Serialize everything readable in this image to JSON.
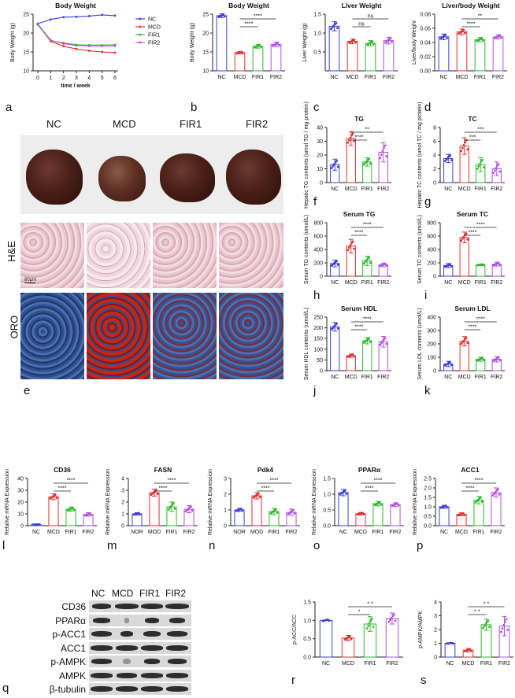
{
  "letters": {
    "a": "a",
    "b": "b",
    "c": "c",
    "d": "d",
    "e": "e",
    "f": "f",
    "g": "g",
    "h": "h",
    "i": "i",
    "j": "j",
    "k": "k",
    "l": "l",
    "m": "m",
    "n": "n",
    "o": "o",
    "p": "p",
    "q": "q",
    "r": "r",
    "s": "s"
  },
  "colors": {
    "NC": "#3d3dd9",
    "MCD": "#e03030",
    "FIR1": "#2eb82e",
    "FIR2": "#b04fe0"
  },
  "liver_photos": {
    "headers": [
      "NC",
      "MCD",
      "FIR1",
      "FIR2"
    ],
    "row_labels": [
      "H&E",
      "ORO"
    ],
    "scale_text": "80μm"
  },
  "western": {
    "lanes": [
      "NC",
      "MCD",
      "FIR1",
      "FIR2"
    ],
    "proteins": [
      "CD36",
      "PPARα",
      "p-ACC1",
      "ACC1",
      "p-AMPK",
      "AMPK",
      "β-tubulin"
    ]
  },
  "chart_data": [
    {
      "id": "a",
      "type": "line",
      "title": "Body Weight",
      "xlabel": "time / week",
      "ylabel": "Body Weight (g)",
      "x": [
        0,
        1,
        2,
        3,
        4,
        5,
        6
      ],
      "xticks": [
        "0",
        "1",
        "2",
        "3",
        "4",
        "5",
        "6"
      ],
      "ylim": [
        10,
        25
      ],
      "yticks": [
        10,
        15,
        20,
        25
      ],
      "legend": "right",
      "series": [
        {
          "name": "NC",
          "values": [
            22.5,
            23.6,
            24.2,
            24.3,
            24.5,
            24.8,
            24.6
          ]
        },
        {
          "name": "MCD",
          "values": [
            22.3,
            17.8,
            16.5,
            15.8,
            15.3,
            15.0,
            14.8
          ]
        },
        {
          "name": "FIR1",
          "values": [
            22.2,
            18.0,
            17.4,
            16.9,
            16.8,
            16.8,
            16.9
          ]
        },
        {
          "name": "FIR2",
          "values": [
            22.4,
            18.1,
            17.2,
            16.7,
            16.6,
            16.6,
            16.6
          ]
        }
      ]
    },
    {
      "id": "b",
      "type": "bar",
      "title": "Body Weight",
      "ylabel": "Body Weight (g)",
      "categories": [
        "NC",
        "MCD",
        "FIR1",
        "FIR2"
      ],
      "values": [
        24.6,
        14.8,
        16.5,
        17.0
      ],
      "errors": [
        0.5,
        0.3,
        0.5,
        0.6
      ],
      "ylim": [
        10,
        25
      ],
      "yticks": [
        10,
        15,
        20,
        25
      ],
      "sig": [
        {
          "from": 1,
          "to": 3,
          "label": "****"
        },
        {
          "from": 1,
          "to": 2,
          "label": "****"
        }
      ]
    },
    {
      "id": "c",
      "type": "bar",
      "title": "Liver Weight",
      "ylabel": "Liver Weight (g)",
      "categories": [
        "NC",
        "MCD",
        "FIR1",
        "FIR2"
      ],
      "values": [
        1.18,
        0.78,
        0.73,
        0.8
      ],
      "errors": [
        0.12,
        0.06,
        0.07,
        0.09
      ],
      "ylim": [
        0,
        1.5
      ],
      "yticks": [
        0.5,
        1.0,
        1.5
      ],
      "ytick_labels": [
        "0.5",
        "1.0",
        "1.5"
      ],
      "sig": [
        {
          "from": 1,
          "to": 3,
          "label": "ns"
        },
        {
          "from": 1,
          "to": 2,
          "label": "ns"
        }
      ]
    },
    {
      "id": "d",
      "type": "bar",
      "title": "Liver/body Weight",
      "ylabel": "Liver/body Weight",
      "categories": [
        "NC",
        "MCD",
        "FIR1",
        "FIR2"
      ],
      "values": [
        0.048,
        0.055,
        0.044,
        0.048
      ],
      "errors": [
        0.004,
        0.004,
        0.003,
        0.003
      ],
      "ylim": [
        0,
        0.08
      ],
      "yticks": [
        0,
        0.02,
        0.04,
        0.06,
        0.08
      ],
      "ytick_labels": [
        "0.00",
        "0.02",
        "0.04",
        "0.06",
        "0.08"
      ],
      "sig": [
        {
          "from": 1,
          "to": 3,
          "label": "**"
        },
        {
          "from": 1,
          "to": 2,
          "label": "****"
        }
      ]
    },
    {
      "id": "f",
      "type": "bar",
      "title": "TG",
      "ylabel": "Hepatic TG contents (umol TG / mg protein)",
      "categories": [
        "NC",
        "MCD",
        "FIR1",
        "FIR2"
      ],
      "values": [
        13,
        32,
        15,
        22
      ],
      "errors": [
        4,
        5,
        3,
        7
      ],
      "ylim": [
        0,
        40
      ],
      "yticks": [
        0,
        10,
        20,
        30,
        40
      ],
      "sig": [
        {
          "from": 1,
          "to": 3,
          "label": "**"
        },
        {
          "from": 1,
          "to": 2,
          "label": "****"
        }
      ]
    },
    {
      "id": "g",
      "type": "bar",
      "title": "TC",
      "ylabel": "Hepatic TC contents (umol TC / mg protein)",
      "categories": [
        "NC",
        "MCD",
        "FIR1",
        "FIR2"
      ],
      "values": [
        3.5,
        5.3,
        2.6,
        2.0
      ],
      "errors": [
        0.6,
        1.2,
        1.0,
        1.0
      ],
      "ylim": [
        0,
        8
      ],
      "yticks": [
        0,
        2,
        4,
        6,
        8
      ],
      "sig": [
        {
          "from": 1,
          "to": 3,
          "label": "***"
        },
        {
          "from": 1,
          "to": 2,
          "label": "***"
        }
      ]
    },
    {
      "id": "h",
      "type": "bar",
      "title": "Serum TG",
      "ylabel": "Serum TG contents (umol/L)",
      "categories": [
        "NC",
        "MCD",
        "FIR1",
        "FIR2"
      ],
      "values": [
        190,
        450,
        230,
        170
      ],
      "errors": [
        50,
        100,
        70,
        25
      ],
      "ylim": [
        0,
        800
      ],
      "yticks": [
        0,
        200,
        400,
        600,
        800
      ],
      "sig": [
        {
          "from": 1,
          "to": 3,
          "label": "****"
        },
        {
          "from": 1,
          "to": 2,
          "label": "****"
        }
      ]
    },
    {
      "id": "i",
      "type": "bar",
      "title": "Serum TC",
      "ylabel": "Serum TC contents (umol/L)",
      "categories": [
        "NC",
        "MCD",
        "FIR1",
        "FIR2"
      ],
      "values": [
        160,
        580,
        170,
        180
      ],
      "errors": [
        30,
        80,
        10,
        30
      ],
      "ylim": [
        0,
        800
      ],
      "yticks": [
        0,
        200,
        400,
        600,
        800
      ],
      "sig": [
        {
          "from": 1,
          "to": 3,
          "label": "****"
        },
        {
          "from": 1,
          "to": 2,
          "label": "****"
        }
      ]
    },
    {
      "id": "j",
      "type": "bar",
      "title": "Serum HDL",
      "ylabel": "Serum HDL contents (umol/L)",
      "categories": [
        "NC",
        "MCD",
        "FIR1",
        "FIR2"
      ],
      "values": [
        205,
        70,
        140,
        135
      ],
      "errors": [
        20,
        8,
        15,
        25
      ],
      "ylim": [
        0,
        250
      ],
      "yticks": [
        0,
        50,
        100,
        150,
        200,
        250
      ],
      "sig": [
        {
          "from": 1,
          "to": 3,
          "label": "****"
        },
        {
          "from": 1,
          "to": 2,
          "label": "****"
        }
      ]
    },
    {
      "id": "k",
      "type": "bar",
      "title": "Serum LDL",
      "ylabel": "Serum LDL contents (umol/L)",
      "categories": [
        "NC",
        "MCD",
        "FIR1",
        "FIR2"
      ],
      "values": [
        50,
        220,
        85,
        85
      ],
      "errors": [
        20,
        35,
        15,
        20
      ],
      "ylim": [
        0,
        400
      ],
      "yticks": [
        0,
        100,
        200,
        300,
        400
      ],
      "sig": [
        {
          "from": 1,
          "to": 3,
          "label": "****"
        },
        {
          "from": 1,
          "to": 2,
          "label": "****"
        }
      ]
    },
    {
      "id": "l",
      "type": "bar",
      "title": "CD36",
      "ylabel": "Relative mRNA Expression",
      "categories": [
        "NC",
        "MCD",
        "FIR1",
        "FIR2"
      ],
      "values": [
        1.0,
        24.5,
        14.0,
        9.5
      ],
      "errors": [
        0.2,
        2.5,
        1.8,
        1.5
      ],
      "ylim": [
        0,
        40
      ],
      "yticks": [
        0,
        10,
        20,
        30,
        40
      ],
      "sig": [
        {
          "from": 1,
          "to": 3,
          "label": "****"
        },
        {
          "from": 1,
          "to": 2,
          "label": "****"
        }
      ]
    },
    {
      "id": "m",
      "type": "bar",
      "title": "FASN",
      "ylabel": "Relative mRNA Expression",
      "categories": [
        "NOR",
        "MOD",
        "FIR1",
        "FIR2"
      ],
      "values": [
        1.0,
        2.8,
        1.6,
        1.4
      ],
      "errors": [
        0.1,
        0.3,
        0.4,
        0.3
      ],
      "ylim": [
        0,
        4
      ],
      "yticks": [
        0,
        1,
        2,
        3,
        4
      ],
      "sig": [
        {
          "from": 1,
          "to": 3,
          "label": "****"
        },
        {
          "from": 1,
          "to": 2,
          "label": "****"
        }
      ]
    },
    {
      "id": "n",
      "type": "bar",
      "title": "Pdk4",
      "ylabel": "Relative mRNA Expression",
      "categories": [
        "NOR",
        "MOD",
        "FIR1",
        "FIR2"
      ],
      "values": [
        1.0,
        1.9,
        0.9,
        0.85
      ],
      "errors": [
        0.1,
        0.2,
        0.2,
        0.2
      ],
      "ylim": [
        0,
        3
      ],
      "yticks": [
        0,
        1,
        2,
        3
      ],
      "sig": [
        {
          "from": 1,
          "to": 3,
          "label": "****"
        },
        {
          "from": 1,
          "to": 2,
          "label": "****"
        }
      ]
    },
    {
      "id": "o",
      "type": "bar",
      "title": "PPARα",
      "ylabel": "Relative mRNA Expression",
      "categories": [
        "NC",
        "MCD",
        "FIR1",
        "FIR2"
      ],
      "values": [
        1.05,
        0.38,
        0.7,
        0.67
      ],
      "errors": [
        0.1,
        0.04,
        0.07,
        0.06
      ],
      "ylim": [
        0,
        1.5
      ],
      "yticks": [
        0,
        0.5,
        1.0,
        1.5
      ],
      "ytick_labels": [
        "0.0",
        "0.5",
        "1.0",
        "1.5"
      ],
      "sig": [
        {
          "from": 1,
          "to": 3,
          "label": "****"
        },
        {
          "from": 1,
          "to": 2,
          "label": "****"
        }
      ]
    },
    {
      "id": "p",
      "type": "bar",
      "title": "ACC1",
      "ylabel": "Relative mRNA Expression",
      "categories": [
        "NC",
        "MCD",
        "FIR1",
        "FIR2"
      ],
      "values": [
        1.0,
        0.6,
        1.35,
        1.75
      ],
      "errors": [
        0.08,
        0.08,
        0.2,
        0.25
      ],
      "ylim": [
        0,
        2.5
      ],
      "yticks": [
        0,
        0.5,
        1.0,
        1.5,
        2.0,
        2.5
      ],
      "ytick_labels": [
        "0.0",
        "0.5",
        "1.0",
        "1.5",
        "2.0",
        "2.5"
      ],
      "sig": [
        {
          "from": 1,
          "to": 3,
          "label": "****"
        },
        {
          "from": 1,
          "to": 2,
          "label": "****"
        }
      ]
    },
    {
      "id": "r",
      "type": "bar",
      "title": "",
      "ylabel": "p-ACC/ACC",
      "categories": [
        "NC",
        "MCD",
        "FIR1",
        "FIR2"
      ],
      "values": [
        1.0,
        0.52,
        0.9,
        1.05
      ],
      "errors": [
        0.0,
        0.07,
        0.2,
        0.15
      ],
      "ylim": [
        0,
        1.5
      ],
      "yticks": [
        0,
        0.5,
        1.0,
        1.5
      ],
      "ytick_labels": [
        "0.0",
        "0.5",
        "1.0",
        "1.5"
      ],
      "sig": [
        {
          "from": 1,
          "to": 3,
          "label": "* *"
        },
        {
          "from": 1,
          "to": 2,
          "label": "*"
        }
      ]
    },
    {
      "id": "s",
      "type": "bar",
      "title": "",
      "ylabel": "p-AMPK/AMPK",
      "categories": [
        "NC",
        "MCD",
        "FIR1",
        "FIR2"
      ],
      "values": [
        1.0,
        0.5,
        2.35,
        2.25
      ],
      "errors": [
        0.0,
        0.12,
        0.4,
        0.7
      ],
      "ylim": [
        0,
        4
      ],
      "yticks": [
        0,
        1,
        2,
        3,
        4
      ],
      "sig": [
        {
          "from": 1,
          "to": 3,
          "label": "* *"
        },
        {
          "from": 1,
          "to": 2,
          "label": "* *"
        }
      ]
    }
  ]
}
